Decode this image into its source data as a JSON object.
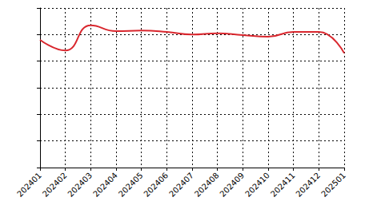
{
  "chart_data": {
    "type": "line",
    "categories": [
      "202401",
      "202402",
      "202403",
      "202404",
      "202405",
      "202406",
      "202407",
      "202408",
      "202409",
      "202410",
      "202411",
      "202412",
      "202501"
    ],
    "values": [
      4.8,
      4.4,
      5.35,
      5.13,
      5.15,
      5.1,
      5.0,
      5.05,
      4.98,
      4.92,
      5.1,
      5.1,
      4.3
    ],
    "color": "#d9272e",
    "ylim": [
      0,
      6
    ],
    "yticks": [
      0,
      1,
      2,
      3,
      4,
      5,
      6
    ],
    "grid": true,
    "tick_labels": "x"
  }
}
